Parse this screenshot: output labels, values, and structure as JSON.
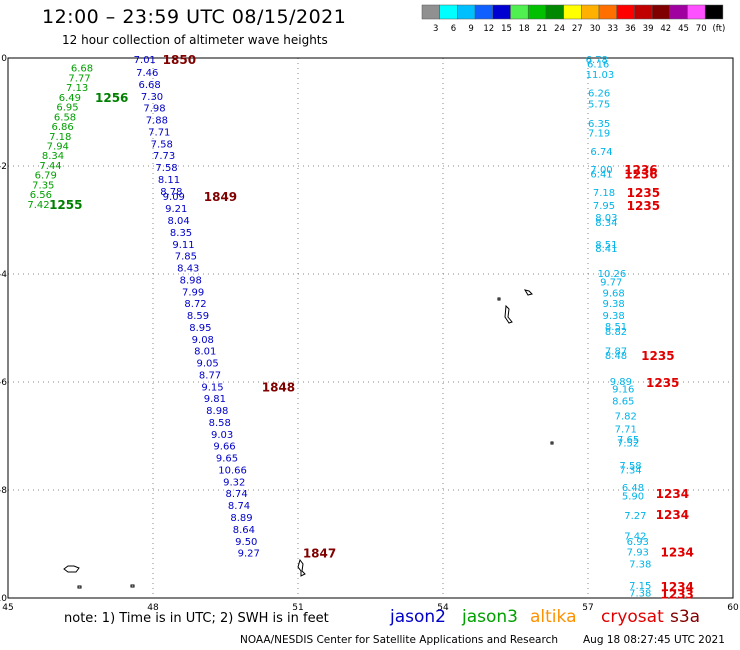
{
  "header": {
    "title": "12:00 – 23:59 UTC 08/15/2021",
    "subtitle": "12 hour collection of altimeter wave heights"
  },
  "color_scale": {
    "colors": [
      "#909090",
      "#00ffff",
      "#00bfff",
      "#1060ff",
      "#0000d0",
      "#50f050",
      "#00c000",
      "#008800",
      "#ffff00",
      "#ffb000",
      "#ff7000",
      "#ff0000",
      "#c00000",
      "#800000",
      "#a000a0",
      "#ff50ff",
      "#000000"
    ],
    "labels": [
      "3",
      "6",
      "9",
      "12",
      "15",
      "18",
      "21",
      "24",
      "27",
      "30",
      "33",
      "36",
      "39",
      "42",
      "45",
      "70",
      "(ft)"
    ]
  },
  "footer": {
    "note": "note: 1) Time is in UTC; 2) SWH is in feet",
    "credit": "NOAA/NESDIS Center for Satellite Applications and Research",
    "timestamp": "Aug 18 08:27:45 UTC 2021",
    "satellites": [
      {
        "name": "jason2",
        "color": "#0000c8"
      },
      {
        "name": "jason3",
        "color": "#00a000"
      },
      {
        "name": "altika",
        "color": "#ff9000"
      },
      {
        "name": "cryosat",
        "color": "#e00000"
      },
      {
        "name": "s3a",
        "color": "#800000"
      }
    ]
  },
  "chart_data": {
    "type": "scatter",
    "title": "12:00 – 23:59 UTC 08/15/2021",
    "xlim": [
      45,
      60
    ],
    "ylim": [
      -10,
      0
    ],
    "x_ticks": [
      "45",
      "48",
      "51",
      "54",
      "57",
      "60"
    ],
    "y_ticks": [
      "0",
      "-2",
      "-4",
      "-6",
      "-8",
      "-10"
    ],
    "grid": true,
    "series": [
      {
        "name": "jason3",
        "color": "#00a000",
        "labels": [
          {
            "x": 46.3,
            "y": -0.18,
            "v": "6.68"
          },
          {
            "x": 46.25,
            "y": -0.36,
            "v": "7.77"
          },
          {
            "x": 46.2,
            "y": -0.54,
            "v": "7.13"
          },
          {
            "x": 46.05,
            "y": -0.72,
            "v": "6.49"
          },
          {
            "x": 46.0,
            "y": -0.9,
            "v": "6.95"
          },
          {
            "x": 45.95,
            "y": -1.08,
            "v": "6.58"
          },
          {
            "x": 45.9,
            "y": -1.26,
            "v": "6.86"
          },
          {
            "x": 45.85,
            "y": -1.44,
            "v": "7.18"
          },
          {
            "x": 45.8,
            "y": -1.62,
            "v": "7.94"
          },
          {
            "x": 45.7,
            "y": -1.8,
            "v": "8.34"
          },
          {
            "x": 45.65,
            "y": -1.98,
            "v": "7.44"
          },
          {
            "x": 45.55,
            "y": -2.16,
            "v": "6.79"
          },
          {
            "x": 45.5,
            "y": -2.34,
            "v": "7.35"
          },
          {
            "x": 45.45,
            "y": -2.52,
            "v": "6.56"
          },
          {
            "x": 45.4,
            "y": -2.7,
            "v": "7.42"
          }
        ]
      },
      {
        "name": "jason3-time",
        "color": "#008000",
        "labels": [
          {
            "x": 46.8,
            "y": -0.72,
            "v": "1256"
          },
          {
            "x": 45.85,
            "y": -2.7,
            "v": "1255"
          }
        ]
      },
      {
        "name": "jason2",
        "color": "#0000c8",
        "labels": [
          {
            "x": 47.6,
            "y": -0.02,
            "v": "7.01"
          },
          {
            "x": 47.65,
            "y": -0.26,
            "v": "7.46"
          },
          {
            "x": 47.7,
            "y": -0.48,
            "v": "6.68"
          },
          {
            "x": 47.75,
            "y": -0.7,
            "v": "7.30"
          },
          {
            "x": 47.8,
            "y": -0.92,
            "v": "7.98"
          },
          {
            "x": 47.85,
            "y": -1.14,
            "v": "7.88"
          },
          {
            "x": 47.9,
            "y": -1.36,
            "v": "7.71"
          },
          {
            "x": 47.95,
            "y": -1.58,
            "v": "7.58"
          },
          {
            "x": 48.0,
            "y": -1.8,
            "v": "7.73"
          },
          {
            "x": 48.05,
            "y": -2.02,
            "v": "7.58"
          },
          {
            "x": 48.1,
            "y": -2.24,
            "v": "8.11"
          },
          {
            "x": 48.15,
            "y": -2.46,
            "v": "8.78"
          },
          {
            "x": 48.2,
            "y": -2.56,
            "v": "9.09"
          },
          {
            "x": 48.25,
            "y": -2.78,
            "v": "9.21"
          },
          {
            "x": 48.3,
            "y": -3.0,
            "v": "8.04"
          },
          {
            "x": 48.35,
            "y": -3.22,
            "v": "8.35"
          },
          {
            "x": 48.4,
            "y": -3.44,
            "v": "9.11"
          },
          {
            "x": 48.45,
            "y": -3.66,
            "v": "7.85"
          },
          {
            "x": 48.5,
            "y": -3.88,
            "v": "8.43"
          },
          {
            "x": 48.55,
            "y": -4.1,
            "v": "8.98"
          },
          {
            "x": 48.6,
            "y": -4.32,
            "v": "7.99"
          },
          {
            "x": 48.65,
            "y": -4.54,
            "v": "8.72"
          },
          {
            "x": 48.7,
            "y": -4.76,
            "v": "8.59"
          },
          {
            "x": 48.75,
            "y": -4.98,
            "v": "8.95"
          },
          {
            "x": 48.8,
            "y": -5.2,
            "v": "9.08"
          },
          {
            "x": 48.85,
            "y": -5.42,
            "v": "8.01"
          },
          {
            "x": 48.9,
            "y": -5.64,
            "v": "9.05"
          },
          {
            "x": 48.95,
            "y": -5.86,
            "v": "8.77"
          },
          {
            "x": 49.0,
            "y": -6.08,
            "v": "9.15"
          },
          {
            "x": 49.05,
            "y": -6.3,
            "v": "9.81"
          },
          {
            "x": 49.1,
            "y": -6.52,
            "v": "8.98"
          },
          {
            "x": 49.15,
            "y": -6.74,
            "v": "8.58"
          },
          {
            "x": 49.2,
            "y": -6.96,
            "v": "9.03"
          },
          {
            "x": 49.25,
            "y": -7.18,
            "v": "9.66"
          },
          {
            "x": 49.3,
            "y": -7.4,
            "v": "9.65"
          },
          {
            "x": 49.35,
            "y": -7.62,
            "v": "10.66"
          },
          {
            "x": 49.45,
            "y": -7.84,
            "v": "9.32"
          },
          {
            "x": 49.5,
            "y": -8.06,
            "v": "8.74"
          },
          {
            "x": 49.55,
            "y": -8.28,
            "v": "8.74"
          },
          {
            "x": 49.6,
            "y": -8.5,
            "v": "8.89"
          },
          {
            "x": 49.65,
            "y": -8.72,
            "v": "8.64"
          },
          {
            "x": 49.7,
            "y": -8.94,
            "v": "9.50"
          },
          {
            "x": 49.75,
            "y": -9.16,
            "v": "9.27"
          }
        ]
      },
      {
        "name": "jason2-time",
        "color": "#800000",
        "labels": [
          {
            "x": 48.2,
            "y": -0.02,
            "v": "1850"
          },
          {
            "x": 49.05,
            "y": -2.56,
            "v": "1849"
          },
          {
            "x": 50.25,
            "y": -6.08,
            "v": "1848"
          },
          {
            "x": 51.1,
            "y": -9.16,
            "v": "1847"
          }
        ]
      },
      {
        "name": "cryosat",
        "color": "#00b4e8",
        "labels": [
          {
            "x": 56.95,
            "y": -0.02,
            "v": "6.78"
          },
          {
            "x": 56.98,
            "y": -0.1,
            "v": "6.16"
          },
          {
            "x": 56.95,
            "y": -0.3,
            "v": "11.03"
          },
          {
            "x": 57.0,
            "y": -0.64,
            "v": "6.26"
          },
          {
            "x": 57.0,
            "y": -0.84,
            "v": "5.75"
          },
          {
            "x": 57.0,
            "y": -1.2,
            "v": "6.35"
          },
          {
            "x": 57.0,
            "y": -1.38,
            "v": "7.19"
          },
          {
            "x": 57.05,
            "y": -1.72,
            "v": "6.74"
          },
          {
            "x": 57.05,
            "y": -2.06,
            "v": "7.00"
          },
          {
            "x": 57.05,
            "y": -2.14,
            "v": "6.41"
          },
          {
            "x": 57.1,
            "y": -2.48,
            "v": "7.18"
          },
          {
            "x": 57.1,
            "y": -2.72,
            "v": "7.95"
          },
          {
            "x": 57.15,
            "y": -2.94,
            "v": "8.03"
          },
          {
            "x": 57.15,
            "y": -3.04,
            "v": "8.34"
          },
          {
            "x": 57.15,
            "y": -3.44,
            "v": "8.51"
          },
          {
            "x": 57.15,
            "y": -3.52,
            "v": "8.41"
          },
          {
            "x": 57.2,
            "y": -3.98,
            "v": "10.26"
          },
          {
            "x": 57.25,
            "y": -4.14,
            "v": "9.77"
          },
          {
            "x": 57.3,
            "y": -4.34,
            "v": "9.68"
          },
          {
            "x": 57.3,
            "y": -4.54,
            "v": "9.38"
          },
          {
            "x": 57.3,
            "y": -4.76,
            "v": "9.38"
          },
          {
            "x": 57.35,
            "y": -4.96,
            "v": "8.51"
          },
          {
            "x": 57.35,
            "y": -5.06,
            "v": "8.82"
          },
          {
            "x": 57.35,
            "y": -5.42,
            "v": "7.87"
          },
          {
            "x": 57.35,
            "y": -5.5,
            "v": "8.48"
          },
          {
            "x": 57.45,
            "y": -5.98,
            "v": "9.89"
          },
          {
            "x": 57.5,
            "y": -6.12,
            "v": "9.16"
          },
          {
            "x": 57.5,
            "y": -6.34,
            "v": "8.65"
          },
          {
            "x": 57.55,
            "y": -6.62,
            "v": "7.82"
          },
          {
            "x": 57.55,
            "y": -6.86,
            "v": "7.71"
          },
          {
            "x": 57.6,
            "y": -7.06,
            "v": "7.65"
          },
          {
            "x": 57.6,
            "y": -7.12,
            "v": "7.52"
          },
          {
            "x": 57.65,
            "y": -7.54,
            "v": "7.58"
          },
          {
            "x": 57.65,
            "y": -7.62,
            "v": "7.34"
          },
          {
            "x": 57.7,
            "y": -7.94,
            "v": "6.48"
          },
          {
            "x": 57.7,
            "y": -8.1,
            "v": "5.90"
          },
          {
            "x": 57.75,
            "y": -8.46,
            "v": "7.27"
          },
          {
            "x": 57.75,
            "y": -8.84,
            "v": "7.42"
          },
          {
            "x": 57.8,
            "y": -8.94,
            "v": "6.93"
          },
          {
            "x": 57.8,
            "y": -9.14,
            "v": "7.93"
          },
          {
            "x": 57.85,
            "y": -9.36,
            "v": "7.38"
          },
          {
            "x": 57.85,
            "y": -9.76,
            "v": "7.15"
          },
          {
            "x": 57.85,
            "y": -9.9,
            "v": "7.38"
          }
        ]
      },
      {
        "name": "cryosat-time",
        "color": "#e00000",
        "labels": [
          {
            "x": 57.75,
            "y": -2.06,
            "v": "1236"
          },
          {
            "x": 57.75,
            "y": -2.14,
            "v": "1236"
          },
          {
            "x": 57.8,
            "y": -2.48,
            "v": "1235"
          },
          {
            "x": 57.8,
            "y": -2.72,
            "v": "1235"
          },
          {
            "x": 58.1,
            "y": -5.5,
            "v": "1235"
          },
          {
            "x": 58.2,
            "y": -6.0,
            "v": "1235"
          },
          {
            "x": 58.4,
            "y": -8.06,
            "v": "1234"
          },
          {
            "x": 58.4,
            "y": -8.44,
            "v": "1234"
          },
          {
            "x": 58.5,
            "y": -9.14,
            "v": "1234"
          },
          {
            "x": 58.5,
            "y": -9.78,
            "v": "1234"
          },
          {
            "x": 58.5,
            "y": -9.92,
            "v": "1233"
          }
        ]
      }
    ]
  }
}
